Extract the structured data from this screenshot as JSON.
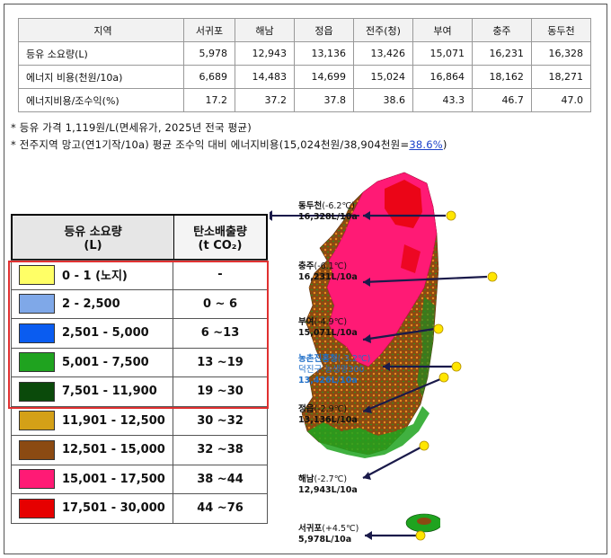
{
  "table": {
    "header": [
      "지역",
      "서귀포",
      "해남",
      "정읍",
      "전주(청)",
      "부여",
      "충주",
      "동두천"
    ],
    "rows": [
      {
        "label": "등유 소요량(L)",
        "values": [
          "5,978",
          "12,943",
          "13,136",
          "13,426",
          "15,071",
          "16,231",
          "16,328"
        ]
      },
      {
        "label": "에너지 비용(천원/10a)",
        "values": [
          "6,689",
          "14,483",
          "14,699",
          "15,024",
          "16,864",
          "18,162",
          "18,271"
        ]
      },
      {
        "label": "에너지비용/조수익(%)",
        "values": [
          "17.2",
          "37.2",
          "37.8",
          "38.6",
          "43.3",
          "46.7",
          "47.0"
        ]
      }
    ]
  },
  "notes": {
    "note1": "*  등유 가격 1,119원/L(면세유가, 2025년 전국 평균)",
    "note2_prefix": "*  전주지역 망고(연1기작/10a) 평균 조수익 대비 에너지비용(15,024천원/38,904천원=",
    "note2_highlight": "38.6%",
    "note2_suffix": ")"
  },
  "legend": {
    "header_col1_line1": "등유  소요량",
    "header_col1_line2": "(L)",
    "header_col2_line1": "탄소배출량",
    "header_col2_line2": "(t CO₂)",
    "rows": [
      {
        "range": "0 - 1 (노지)",
        "co2": "-",
        "color": "#ffff66"
      },
      {
        "range": "2 - 2,500",
        "co2": "0  ~  6",
        "color": "#7fa8e8"
      },
      {
        "range": "2,501  -  5,000",
        "co2": "6 ~13",
        "color": "#0a5cf0"
      },
      {
        "range": "5,001  -  7,500",
        "co2": "13 ~19",
        "color": "#1fa31f"
      },
      {
        "range": "7,501  -  11,900",
        "co2": "19 ~30",
        "color": "#0a4a0a"
      },
      {
        "range": "11,901  -  12,500",
        "co2": "30 ~32",
        "color": "#d4a017"
      },
      {
        "range": "12,501  -  15,000",
        "co2": "32 ~38",
        "color": "#8b4a12"
      },
      {
        "range": "15,001  -  17,500",
        "co2": "38 ~44",
        "color": "#ff1a75"
      },
      {
        "range": "17,501  -  30,000",
        "co2": "44 ~76",
        "color": "#e60000"
      }
    ]
  },
  "map": {
    "cities": [
      {
        "name": "동두천",
        "temp": "(-6.2℃)",
        "value": "16,328L/10a"
      },
      {
        "name": "충주",
        "temp": "(-6.1℃)",
        "value": "16,231L/10a"
      },
      {
        "name": "부여",
        "temp": "(-4.9℃)",
        "value": "15,071L/10a"
      },
      {
        "name": "농촌진흥청",
        "temp": "(-3.2℃)",
        "line2": "덕진구 농생명300",
        "value": "13,426L/10a"
      },
      {
        "name": "정읍",
        "temp": "(-2.9℃)",
        "value": "13,136L/10a"
      },
      {
        "name": "해남",
        "temp": "(-2.7℃)",
        "value": "12,943L/10a"
      },
      {
        "name": "서귀포",
        "temp": "(+4.5℃)",
        "value": "5,978L/10a"
      }
    ]
  }
}
